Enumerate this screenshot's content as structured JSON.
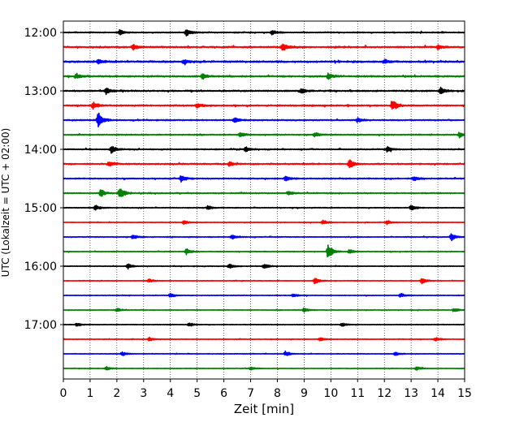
{
  "chart_data": {
    "type": "line",
    "title": "",
    "xlabel": "Zeit  [min]",
    "ylabel": "UTC (Lokalzeit = UTC + 02:00)",
    "xlim": [
      0,
      15
    ],
    "x_ticks": [
      "0",
      "1",
      "2",
      "3",
      "4",
      "5",
      "6",
      "7",
      "8",
      "9",
      "10",
      "11",
      "12",
      "13",
      "14",
      "15"
    ],
    "y_start": "12:00",
    "y_end": "17:45",
    "y_ticks": [
      "12:00",
      "13:00",
      "14:00",
      "15:00",
      "16:00",
      "17:00"
    ],
    "trace_interval_minutes": 15,
    "vertical_grid": true,
    "grid_style": "dotted",
    "trace_colors": [
      "#000000",
      "#ff0000",
      "#0000ff",
      "#008000"
    ],
    "traces": [
      {
        "label": "12:00",
        "color": "#000000",
        "noise": 0.35,
        "events": [
          {
            "x": 2.1,
            "amp": 1.0
          },
          {
            "x": 4.6,
            "amp": 1.4
          },
          {
            "x": 7.8,
            "amp": 0.9
          }
        ]
      },
      {
        "label": "12:15",
        "color": "#ff0000",
        "noise": 0.5,
        "events": [
          {
            "x": 2.6,
            "amp": 1.1
          },
          {
            "x": 8.2,
            "amp": 1.6
          },
          {
            "x": 14.0,
            "amp": 0.9
          }
        ]
      },
      {
        "label": "12:30",
        "color": "#0000ff",
        "noise": 0.55,
        "events": [
          {
            "x": 1.3,
            "amp": 0.9
          },
          {
            "x": 4.5,
            "amp": 1.0
          },
          {
            "x": 12.0,
            "amp": 0.9
          }
        ]
      },
      {
        "label": "12:45",
        "color": "#008000",
        "noise": 0.5,
        "events": [
          {
            "x": 0.5,
            "amp": 1.0
          },
          {
            "x": 5.2,
            "amp": 1.1
          },
          {
            "x": 9.9,
            "amp": 1.2
          }
        ]
      },
      {
        "label": "13:00",
        "color": "#000000",
        "noise": 0.45,
        "events": [
          {
            "x": 1.6,
            "amp": 1.3
          },
          {
            "x": 8.9,
            "amp": 1.2
          },
          {
            "x": 14.1,
            "amp": 1.3
          }
        ]
      },
      {
        "label": "13:15",
        "color": "#ff0000",
        "noise": 0.45,
        "events": [
          {
            "x": 1.1,
            "amp": 1.5
          },
          {
            "x": 5.0,
            "amp": 1.0
          },
          {
            "x": 12.3,
            "amp": 2.4
          }
        ]
      },
      {
        "label": "13:30",
        "color": "#0000ff",
        "noise": 0.4,
        "events": [
          {
            "x": 1.3,
            "amp": 3.2
          },
          {
            "x": 6.4,
            "amp": 1.1
          },
          {
            "x": 11.0,
            "amp": 1.0
          }
        ]
      },
      {
        "label": "13:45",
        "color": "#008000",
        "noise": 0.35,
        "events": [
          {
            "x": 6.6,
            "amp": 1.0
          },
          {
            "x": 9.4,
            "amp": 0.9
          },
          {
            "x": 14.8,
            "amp": 1.1
          }
        ]
      },
      {
        "label": "14:00",
        "color": "#000000",
        "noise": 0.35,
        "events": [
          {
            "x": 1.8,
            "amp": 1.6
          },
          {
            "x": 6.8,
            "amp": 1.0
          },
          {
            "x": 12.1,
            "amp": 1.1
          }
        ]
      },
      {
        "label": "14:15",
        "color": "#ff0000",
        "noise": 0.4,
        "events": [
          {
            "x": 1.7,
            "amp": 1.2
          },
          {
            "x": 6.2,
            "amp": 0.9
          },
          {
            "x": 10.7,
            "amp": 2.0
          }
        ]
      },
      {
        "label": "14:30",
        "color": "#0000ff",
        "noise": 0.35,
        "events": [
          {
            "x": 4.4,
            "amp": 1.3
          },
          {
            "x": 8.3,
            "amp": 1.0
          },
          {
            "x": 13.1,
            "amp": 1.0
          }
        ]
      },
      {
        "label": "14:45",
        "color": "#008000",
        "noise": 0.35,
        "events": [
          {
            "x": 1.4,
            "amp": 1.5
          },
          {
            "x": 2.1,
            "amp": 2.6
          },
          {
            "x": 8.4,
            "amp": 0.8
          }
        ]
      },
      {
        "label": "15:00",
        "color": "#000000",
        "noise": 0.25,
        "events": [
          {
            "x": 1.2,
            "amp": 1.0
          },
          {
            "x": 5.4,
            "amp": 1.0
          },
          {
            "x": 13.0,
            "amp": 1.3
          }
        ]
      },
      {
        "label": "15:15",
        "color": "#ff0000",
        "noise": 0.2,
        "events": [
          {
            "x": 4.5,
            "amp": 0.8
          },
          {
            "x": 9.7,
            "amp": 0.9
          },
          {
            "x": 12.1,
            "amp": 0.9
          }
        ]
      },
      {
        "label": "15:30",
        "color": "#0000ff",
        "noise": 0.25,
        "events": [
          {
            "x": 2.6,
            "amp": 1.0
          },
          {
            "x": 6.3,
            "amp": 0.9
          },
          {
            "x": 14.5,
            "amp": 1.4
          }
        ]
      },
      {
        "label": "15:45",
        "color": "#008000",
        "noise": 0.25,
        "events": [
          {
            "x": 4.6,
            "amp": 1.2
          },
          {
            "x": 9.9,
            "amp": 3.0
          },
          {
            "x": 10.7,
            "amp": 1.0
          }
        ]
      },
      {
        "label": "16:00",
        "color": "#000000",
        "noise": 0.2,
        "events": [
          {
            "x": 2.4,
            "amp": 1.0
          },
          {
            "x": 6.2,
            "amp": 1.0
          },
          {
            "x": 7.5,
            "amp": 1.1
          }
        ]
      },
      {
        "label": "16:15",
        "color": "#ff0000",
        "noise": 0.2,
        "events": [
          {
            "x": 3.2,
            "amp": 0.8
          },
          {
            "x": 9.4,
            "amp": 1.2
          },
          {
            "x": 13.4,
            "amp": 1.1
          }
        ]
      },
      {
        "label": "16:30",
        "color": "#0000ff",
        "noise": 0.2,
        "events": [
          {
            "x": 4.0,
            "amp": 0.8
          },
          {
            "x": 8.6,
            "amp": 0.8
          },
          {
            "x": 12.6,
            "amp": 0.9
          }
        ]
      },
      {
        "label": "16:45",
        "color": "#008000",
        "noise": 0.2,
        "events": [
          {
            "x": 2.0,
            "amp": 0.8
          },
          {
            "x": 9.0,
            "amp": 0.9
          },
          {
            "x": 14.6,
            "amp": 0.8
          }
        ]
      },
      {
        "label": "17:00",
        "color": "#000000",
        "noise": 0.2,
        "events": [
          {
            "x": 0.5,
            "amp": 0.8
          },
          {
            "x": 4.7,
            "amp": 0.8
          },
          {
            "x": 10.4,
            "amp": 0.8
          }
        ]
      },
      {
        "label": "17:15",
        "color": "#ff0000",
        "noise": 0.2,
        "events": [
          {
            "x": 3.2,
            "amp": 0.8
          },
          {
            "x": 9.6,
            "amp": 0.8
          },
          {
            "x": 13.9,
            "amp": 0.8
          }
        ]
      },
      {
        "label": "17:30",
        "color": "#0000ff",
        "noise": 0.2,
        "events": [
          {
            "x": 2.2,
            "amp": 0.8
          },
          {
            "x": 8.3,
            "amp": 1.0
          },
          {
            "x": 12.4,
            "amp": 0.8
          }
        ]
      },
      {
        "label": "17:45",
        "color": "#008000",
        "noise": 0.2,
        "events": [
          {
            "x": 1.6,
            "amp": 0.7
          },
          {
            "x": 7.0,
            "amp": 0.7
          },
          {
            "x": 13.2,
            "amp": 0.7
          }
        ]
      }
    ]
  }
}
